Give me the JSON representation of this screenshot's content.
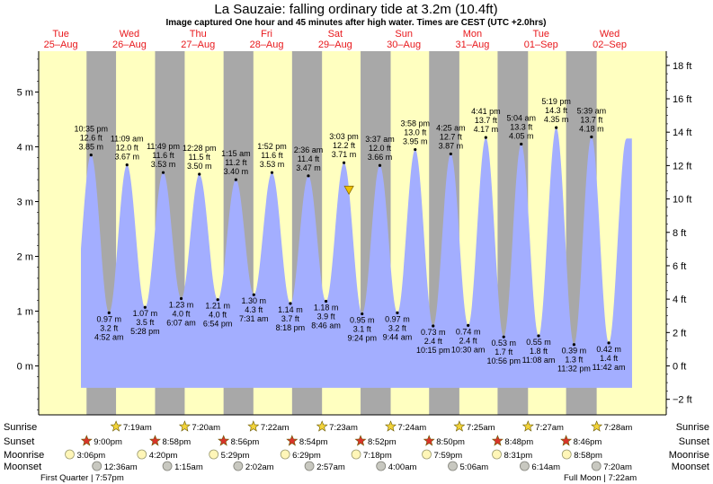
{
  "title": "La Sauzaie: falling  ordinary tide at 3.2m (10.4ft)",
  "subtitle": "Image captured One hour and 45 minutes after high water. Times are CEST (UTC +2.0hrs)",
  "colors": {
    "day_bg": "#ffffc0",
    "night_bg": "#a8a8a8",
    "tide_fill": "#a3aeff",
    "day_label": "#e8181c",
    "marker": "#f0c000"
  },
  "row_labels": [
    "Sunrise",
    "Sunset",
    "Moonrise",
    "Moonset"
  ],
  "moon_phases": {
    "left": "First Quarter | 7:57pm",
    "right": "Full Moon | 7:22am"
  },
  "chart_data": {
    "type": "area",
    "ylabel_left": "m",
    "ylabel_right": "ft",
    "ylim_m": [
      -0.85,
      5.8
    ],
    "yticks_m": [
      0,
      1,
      2,
      3,
      4,
      5
    ],
    "yticks_m_labels": [
      "0 m",
      "1 m",
      "2 m",
      "3 m",
      "4 m",
      "5 m"
    ],
    "yticks_ft": [
      -2,
      0,
      2,
      4,
      6,
      8,
      10,
      12,
      14,
      16,
      18
    ],
    "yticks_ft_labels": [
      "−2 ft",
      "0 ft",
      "2 ft",
      "4 ft",
      "6 ft",
      "8 ft",
      "10 ft",
      "12 ft",
      "14 ft",
      "16 ft",
      "18 ft"
    ],
    "days": [
      {
        "dow": "Tue",
        "date": "25–Aug"
      },
      {
        "dow": "Wed",
        "date": "26–Aug"
      },
      {
        "dow": "Thu",
        "date": "27–Aug"
      },
      {
        "dow": "Fri",
        "date": "28–Aug"
      },
      {
        "dow": "Sat",
        "date": "29–Aug"
      },
      {
        "dow": "Sun",
        "date": "30–Aug"
      },
      {
        "dow": "Mon",
        "date": "31–Aug"
      },
      {
        "dow": "Tue",
        "date": "01–Sep"
      },
      {
        "dow": "Wed",
        "date": "02–Sep"
      }
    ],
    "extremes": [
      {
        "type": "high",
        "day": 0,
        "time": "10:35 pm",
        "ft": "12.6 ft",
        "m": "3.85 m",
        "value": 3.85
      },
      {
        "type": "low",
        "day": 1,
        "time": "4:52 am",
        "ft": "3.2 ft",
        "m": "0.97 m",
        "value": 0.97
      },
      {
        "type": "high",
        "day": 1,
        "time": "11:09 am",
        "ft": "12.0 ft",
        "m": "3.67 m",
        "value": 3.67
      },
      {
        "type": "low",
        "day": 1,
        "time": "5:28 pm",
        "ft": "3.5 ft",
        "m": "1.07 m",
        "value": 1.07
      },
      {
        "type": "high",
        "day": 1,
        "time": "11:49 pm",
        "ft": "11.6 ft",
        "m": "3.53 m",
        "value": 3.53
      },
      {
        "type": "low",
        "day": 2,
        "time": "6:07 am",
        "ft": "4.0 ft",
        "m": "1.23 m",
        "value": 1.23
      },
      {
        "type": "high",
        "day": 2,
        "time": "12:28 pm",
        "ft": "11.5 ft",
        "m": "3.50 m",
        "value": 3.5
      },
      {
        "type": "low",
        "day": 2,
        "time": "6:54 pm",
        "ft": "4.0 ft",
        "m": "1.21 m",
        "value": 1.21
      },
      {
        "type": "high",
        "day": 3,
        "time": "1:15 am",
        "ft": "11.2 ft",
        "m": "3.40 m",
        "value": 3.4
      },
      {
        "type": "low",
        "day": 3,
        "time": "7:31 am",
        "ft": "4.3 ft",
        "m": "1.30 m",
        "value": 1.3
      },
      {
        "type": "high",
        "day": 3,
        "time": "1:52 pm",
        "ft": "11.6 ft",
        "m": "3.53 m",
        "value": 3.53
      },
      {
        "type": "low",
        "day": 3,
        "time": "8:18 pm",
        "ft": "3.7 ft",
        "m": "1.14 m",
        "value": 1.14
      },
      {
        "type": "high",
        "day": 4,
        "time": "2:36 am",
        "ft": "11.4 ft",
        "m": "3.47 m",
        "value": 3.47
      },
      {
        "type": "low",
        "day": 4,
        "time": "8:46 am",
        "ft": "3.9 ft",
        "m": "1.18 m",
        "value": 1.18
      },
      {
        "type": "high",
        "day": 4,
        "time": "3:03 pm",
        "ft": "12.2 ft",
        "m": "3.71 m",
        "value": 3.71
      },
      {
        "type": "low",
        "day": 4,
        "time": "9:24 pm",
        "ft": "3.1 ft",
        "m": "0.95 m",
        "value": 0.95
      },
      {
        "type": "high",
        "day": 5,
        "time": "3:37 am",
        "ft": "12.0 ft",
        "m": "3.66 m",
        "value": 3.66
      },
      {
        "type": "low",
        "day": 5,
        "time": "9:44 am",
        "ft": "3.2 ft",
        "m": "0.97 m",
        "value": 0.97
      },
      {
        "type": "high",
        "day": 5,
        "time": "3:58 pm",
        "ft": "13.0 ft",
        "m": "3.95 m",
        "value": 3.95
      },
      {
        "type": "low",
        "day": 5,
        "time": "10:15 pm",
        "ft": "2.4 ft",
        "m": "0.73 m",
        "value": 0.73
      },
      {
        "type": "high",
        "day": 6,
        "time": "4:25 am",
        "ft": "12.7 ft",
        "m": "3.87 m",
        "value": 3.87
      },
      {
        "type": "low",
        "day": 6,
        "time": "10:30 am",
        "ft": "2.4 ft",
        "m": "0.74 m",
        "value": 0.74
      },
      {
        "type": "high",
        "day": 6,
        "time": "4:41 pm",
        "ft": "13.7 ft",
        "m": "4.17 m",
        "value": 4.17
      },
      {
        "type": "low",
        "day": 6,
        "time": "10:56 pm",
        "ft": "1.7 ft",
        "m": "0.53 m",
        "value": 0.53
      },
      {
        "type": "high",
        "day": 7,
        "time": "5:04 am",
        "ft": "13.3 ft",
        "m": "4.05 m",
        "value": 4.05
      },
      {
        "type": "low",
        "day": 7,
        "time": "11:08 am",
        "ft": "1.8 ft",
        "m": "0.55 m",
        "value": 0.55
      },
      {
        "type": "high",
        "day": 7,
        "time": "5:19 pm",
        "ft": "14.3 ft",
        "m": "4.35 m",
        "value": 4.35
      },
      {
        "type": "low",
        "day": 7,
        "time": "11:32 pm",
        "ft": "1.3 ft",
        "m": "0.39 m",
        "value": 0.39
      },
      {
        "type": "high",
        "day": 8,
        "time": "5:39 am",
        "ft": "13.7 ft",
        "m": "4.18 m",
        "value": 4.18
      },
      {
        "type": "low",
        "day": 8,
        "time": "11:42 am",
        "ft": "1.4 ft",
        "m": "0.42 m",
        "value": 0.42
      }
    ],
    "current": {
      "value_m": 3.2,
      "day": 4,
      "time": "4:48 pm"
    },
    "sunrise": [
      "7:19am",
      "7:20am",
      "7:22am",
      "7:23am",
      "7:24am",
      "7:25am",
      "7:27am",
      "7:28am"
    ],
    "sunset": [
      "9:00pm",
      "8:58pm",
      "8:56pm",
      "8:54pm",
      "8:52pm",
      "8:50pm",
      "8:48pm",
      "8:46pm"
    ],
    "moonrise": [
      "3:06pm",
      "4:20pm",
      "5:29pm",
      "6:29pm",
      "7:18pm",
      "7:59pm",
      "8:31pm",
      "8:58pm"
    ],
    "moonset": [
      "12:36am",
      "1:15am",
      "2:02am",
      "2:57am",
      "4:00am",
      "5:06am",
      "6:14am",
      "7:20am"
    ]
  }
}
